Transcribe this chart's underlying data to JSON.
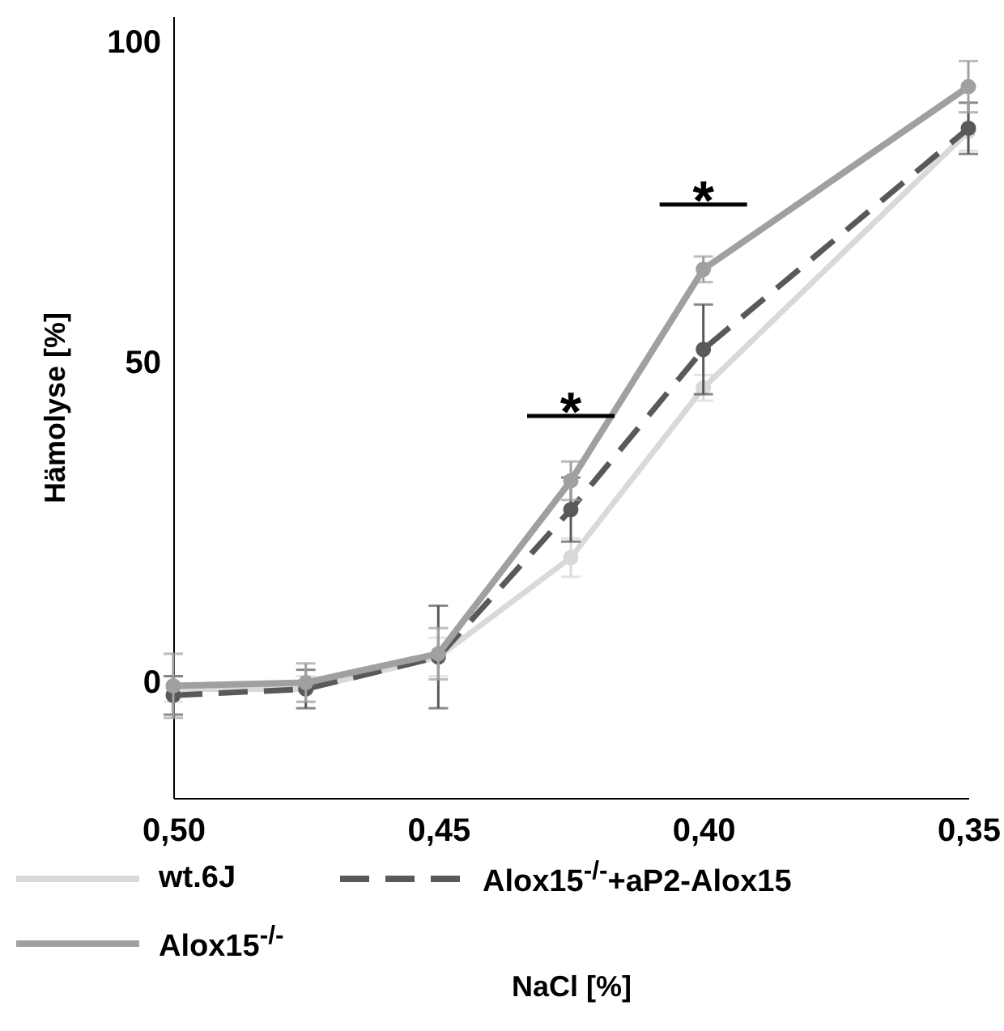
{
  "chart_data": {
    "type": "line",
    "xlabel": "NaCl [%]",
    "ylabel": "Hämolyse [%]",
    "x": [
      0.5,
      0.475,
      0.45,
      0.425,
      0.4,
      0.35
    ],
    "xlim": [
      0.5,
      0.35
    ],
    "xticks": [
      {
        "value": 0.5,
        "label": "0,50"
      },
      {
        "value": 0.45,
        "label": "0,45"
      },
      {
        "value": 0.4,
        "label": "0,40"
      },
      {
        "value": 0.35,
        "label": "0,35"
      }
    ],
    "ylim": [
      -18,
      104
    ],
    "yticks": [
      0,
      50,
      100
    ],
    "marker": "circle",
    "legend": "bottom",
    "series": [
      {
        "name": "wt.6J",
        "color": "#d9d9d9",
        "line_style": "solid",
        "values": [
          -1,
          -1,
          4,
          19.5,
          46,
          86
        ],
        "errors": [
          2,
          2,
          3,
          3,
          2,
          3
        ]
      },
      {
        "name": "Alox15$^{-/-}$+aP2-Alox15",
        "color": "#595959",
        "line_style": "dashed",
        "values": [
          -2,
          -1,
          4,
          27,
          52,
          86.5
        ],
        "errors": [
          3,
          3,
          8,
          5,
          7,
          4
        ]
      },
      {
        "name": "Alox15$^{-/-}$",
        "color": "#a0a0a0",
        "line_style": "solid",
        "values": [
          -0.5,
          0,
          4.5,
          31.5,
          64.5,
          93
        ],
        "errors": [
          5,
          3,
          4,
          3,
          2,
          4
        ]
      }
    ],
    "annotations": [
      "*",
      "*"
    ]
  }
}
